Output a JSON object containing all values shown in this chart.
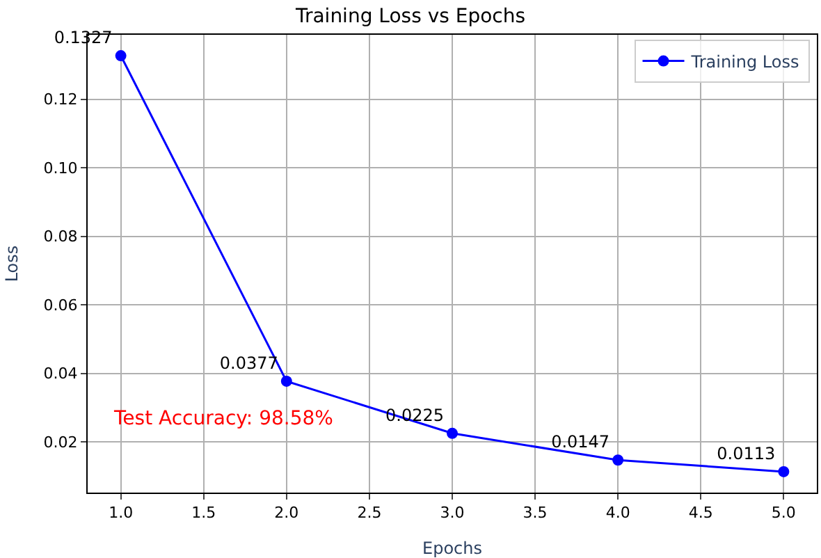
{
  "chart_data": {
    "type": "line",
    "title": "Training Loss vs Epochs",
    "xlabel": "Epochs",
    "ylabel": "Loss",
    "x": [
      1,
      2,
      3,
      4,
      5
    ],
    "series": [
      {
        "name": "Training Loss",
        "color": "#0000ff",
        "values": [
          0.1327,
          0.0377,
          0.0225,
          0.0147,
          0.0113
        ]
      }
    ],
    "data_labels": true,
    "xlim": [
      0.8,
      5.2
    ],
    "xticks": [
      {
        "value": 1,
        "label": "1.0"
      },
      {
        "value": 1.5,
        "label": "1.5"
      },
      {
        "value": 2,
        "label": "2.0"
      },
      {
        "value": 2.5,
        "label": "2.5"
      },
      {
        "value": 3,
        "label": "3.0"
      },
      {
        "value": 3.5,
        "label": "3.5"
      },
      {
        "value": 4,
        "label": "4.0"
      },
      {
        "value": 4.5,
        "label": "4.5"
      },
      {
        "value": 5,
        "label": "5.0"
      }
    ],
    "ylim": [
      0.0052,
      0.1388
    ],
    "yticks": [
      {
        "value": 0.02,
        "label": "0.02"
      },
      {
        "value": 0.04,
        "label": "0.04"
      },
      {
        "value": 0.06,
        "label": "0.06"
      },
      {
        "value": 0.08,
        "label": "0.08"
      },
      {
        "value": 0.1,
        "label": "0.10"
      },
      {
        "value": 0.12,
        "label": "0.12"
      }
    ],
    "annotations": [
      "Test Accuracy: 98.58%"
    ],
    "grid": true,
    "legend": "top right",
    "marker": "circle",
    "line_style": "solid"
  }
}
